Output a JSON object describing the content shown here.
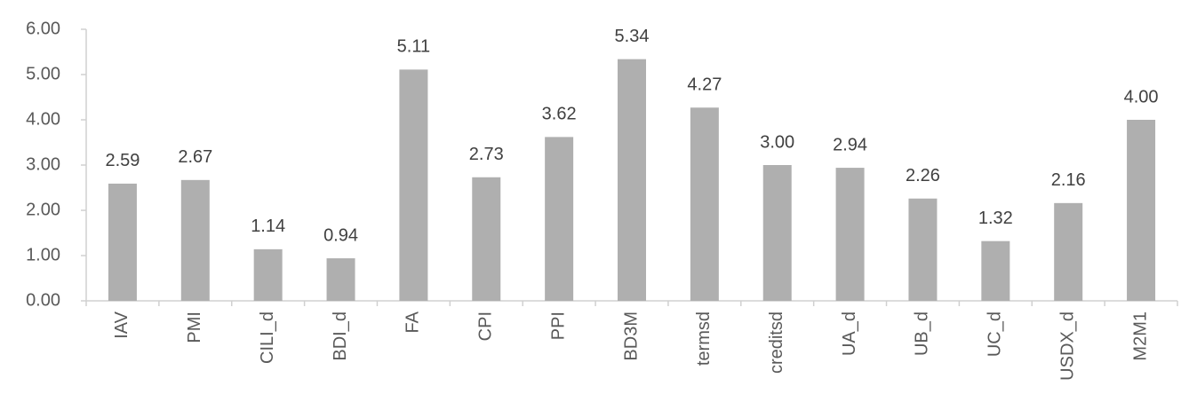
{
  "chart_data": {
    "type": "bar",
    "categories": [
      "IAV",
      "PMI",
      "CILI_d",
      "BDI_d",
      "FA",
      "CPI",
      "PPI",
      "BD3M",
      "termsd",
      "creditsd",
      "UA_d",
      "UB_d",
      "UC_d",
      "USDX_d",
      "M2M1"
    ],
    "values": [
      2.59,
      2.67,
      1.14,
      0.94,
      5.11,
      2.73,
      3.62,
      5.34,
      4.27,
      3.0,
      2.94,
      2.26,
      1.32,
      2.16,
      4.0
    ],
    "value_labels": [
      "2.59",
      "2.67",
      "1.14",
      "0.94",
      "5.11",
      "2.73",
      "3.62",
      "5.34",
      "4.27",
      "3.00",
      "2.94",
      "2.26",
      "1.32",
      "2.16",
      "4.00"
    ],
    "color": "#afafaf",
    "ylim": [
      0,
      6
    ],
    "yticks": [
      {
        "value": 0,
        "label": "0.00"
      },
      {
        "value": 1,
        "label": "1.00"
      },
      {
        "value": 2,
        "label": "2.00"
      },
      {
        "value": 3,
        "label": "3.00"
      },
      {
        "value": 4,
        "label": "4.00"
      },
      {
        "value": 5,
        "label": "5.00"
      },
      {
        "value": 6,
        "label": "6.00"
      }
    ],
    "grid": false
  }
}
